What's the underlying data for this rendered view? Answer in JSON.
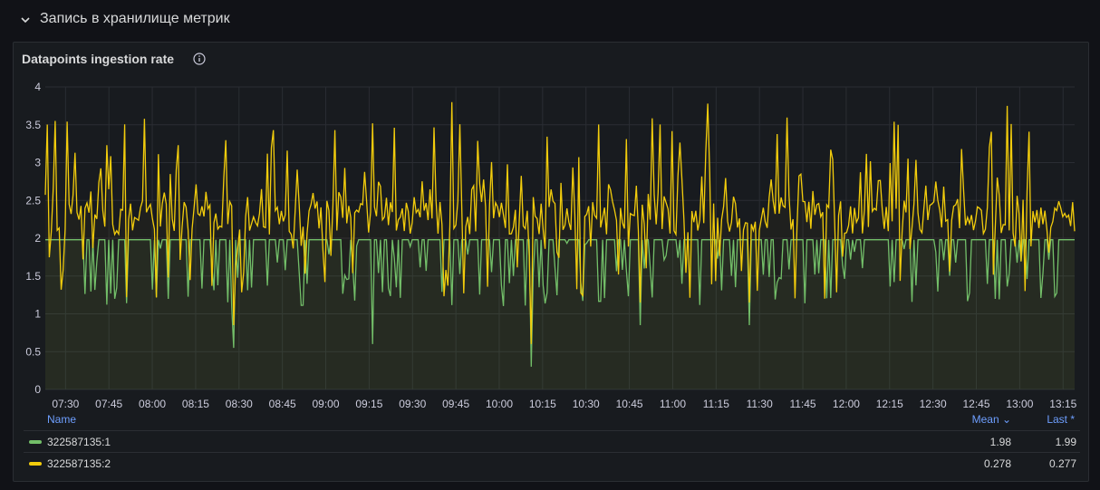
{
  "row": {
    "title": "Запись в хранилище метрик",
    "icon": "chevron-down-icon"
  },
  "panel": {
    "title": "Datapoints ingestion rate",
    "info_icon": "info-icon"
  },
  "legend": {
    "headers": {
      "name": "Name",
      "mean": "Mean ⌄",
      "last": "Last *"
    },
    "rows": [
      {
        "name": "322587135:1",
        "mean": "1.98",
        "last": "1.99",
        "color": "#73bf69"
      },
      {
        "name": "322587135:2",
        "mean": "0.278",
        "last": "0.277",
        "color": "#f2cc0c"
      }
    ]
  },
  "chart_data": {
    "type": "line",
    "ylim": [
      0,
      4
    ],
    "y_ticks": [
      "0",
      "0.5",
      "1",
      "1.5",
      "2",
      "2.5",
      "3",
      "3.5",
      "4"
    ],
    "x_ticks": [
      "07:30",
      "07:45",
      "08:00",
      "08:15",
      "08:30",
      "08:45",
      "09:00",
      "09:15",
      "09:30",
      "09:45",
      "10:00",
      "10:15",
      "10:30",
      "10:45",
      "11:00",
      "11:15",
      "11:30",
      "11:45",
      "12:00",
      "12:15",
      "12:30",
      "12:45",
      "13:00",
      "13:15"
    ],
    "x_range": [
      "07:23",
      "13:19"
    ],
    "grid": true,
    "series": [
      {
        "name": "322587135:1",
        "color": "#73bf69",
        "baseline": 1.98,
        "min_dips": [
          0.55,
          0.6,
          0.3,
          0.85,
          0.85
        ],
        "note_shape": "mostly ~2 with frequent dips to 1.1–1.7"
      },
      {
        "name": "322587135:2",
        "color": "#f2cc0c",
        "baseline": 2.25,
        "max_peaks": [
          3.8,
          3.78,
          3.75,
          3.5,
          3.52
        ],
        "note_shape": "spiky series ~2.0–2.6 with frequent peaks to 3.0–3.8"
      }
    ]
  }
}
